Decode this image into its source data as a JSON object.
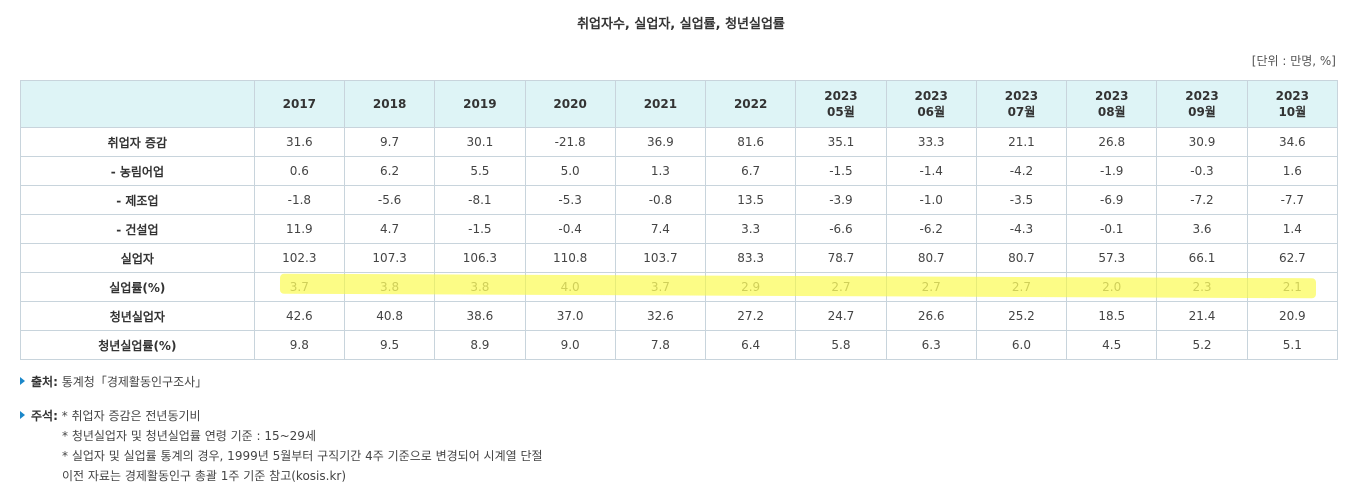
{
  "title": "취업자수, 실업자, 실업률, 청년실업률",
  "unit": "[단위 : 만명, %]",
  "columns": [
    {
      "year": "2017",
      "month": ""
    },
    {
      "year": "2018",
      "month": ""
    },
    {
      "year": "2019",
      "month": ""
    },
    {
      "year": "2020",
      "month": ""
    },
    {
      "year": "2021",
      "month": ""
    },
    {
      "year": "2022",
      "month": ""
    },
    {
      "year": "2023",
      "month": "05월"
    },
    {
      "year": "2023",
      "month": "06월"
    },
    {
      "year": "2023",
      "month": "07월"
    },
    {
      "year": "2023",
      "month": "08월"
    },
    {
      "year": "2023",
      "month": "09월"
    },
    {
      "year": "2023",
      "month": "10월"
    }
  ],
  "rows": [
    {
      "label": "취업자 증감",
      "values": [
        "31.6",
        "9.7",
        "30.1",
        "-21.8",
        "36.9",
        "81.6",
        "35.1",
        "33.3",
        "21.1",
        "26.8",
        "30.9",
        "34.6"
      ]
    },
    {
      "label": "- 농림어업",
      "values": [
        "0.6",
        "6.2",
        "5.5",
        "5.0",
        "1.3",
        "6.7",
        "-1.5",
        "-1.4",
        "-4.2",
        "-1.9",
        "-0.3",
        "1.6"
      ]
    },
    {
      "label": "- 제조업",
      "values": [
        "-1.8",
        "-5.6",
        "-8.1",
        "-5.3",
        "-0.8",
        "13.5",
        "-3.9",
        "-1.0",
        "-3.5",
        "-6.9",
        "-7.2",
        "-7.7"
      ]
    },
    {
      "label": "- 건설업",
      "values": [
        "11.9",
        "4.7",
        "-1.5",
        "-0.4",
        "7.4",
        "3.3",
        "-6.6",
        "-6.2",
        "-4.3",
        "-0.1",
        "3.6",
        "1.4"
      ]
    },
    {
      "label": "실업자",
      "values": [
        "102.3",
        "107.3",
        "106.3",
        "110.8",
        "103.7",
        "83.3",
        "78.7",
        "80.7",
        "80.7",
        "57.3",
        "66.1",
        "62.7"
      ]
    },
    {
      "label": "실업률(%)",
      "values": [
        "3.7",
        "3.8",
        "3.8",
        "4.0",
        "3.7",
        "2.9",
        "2.7",
        "2.7",
        "2.7",
        "2.0",
        "2.3",
        "2.1"
      ]
    },
    {
      "label": "청년실업자",
      "values": [
        "42.6",
        "40.8",
        "38.6",
        "37.0",
        "32.6",
        "27.2",
        "24.7",
        "26.6",
        "25.2",
        "18.5",
        "21.4",
        "20.9"
      ]
    },
    {
      "label": "청년실업률(%)",
      "values": [
        "9.8",
        "9.5",
        "8.9",
        "9.0",
        "7.8",
        "6.4",
        "5.8",
        "6.3",
        "6.0",
        "4.5",
        "5.2",
        "5.1"
      ]
    }
  ],
  "source": {
    "label": "출처:",
    "text": " 통계청「경제활동인구조사」"
  },
  "notes": {
    "label": "주석:",
    "lines": [
      " * 취업자 증감은 전년동기비",
      "* 청년실업자 및 청년실업률 연령 기준 : 15~29세",
      "* 실업자 및 실업률 통계의 경우, 1999년 5월부터 구직기간 4주 기준으로 변경되어 시계열 단절",
      "이전 자료는 경제활동인구 총괄 1주 기준 참고(kosis.kr)"
    ]
  },
  "colors": {
    "header_bg": "#def4f6",
    "border": "#c8d4dc",
    "highlight": "#fafa3c",
    "bullet": "#1b87c9"
  }
}
